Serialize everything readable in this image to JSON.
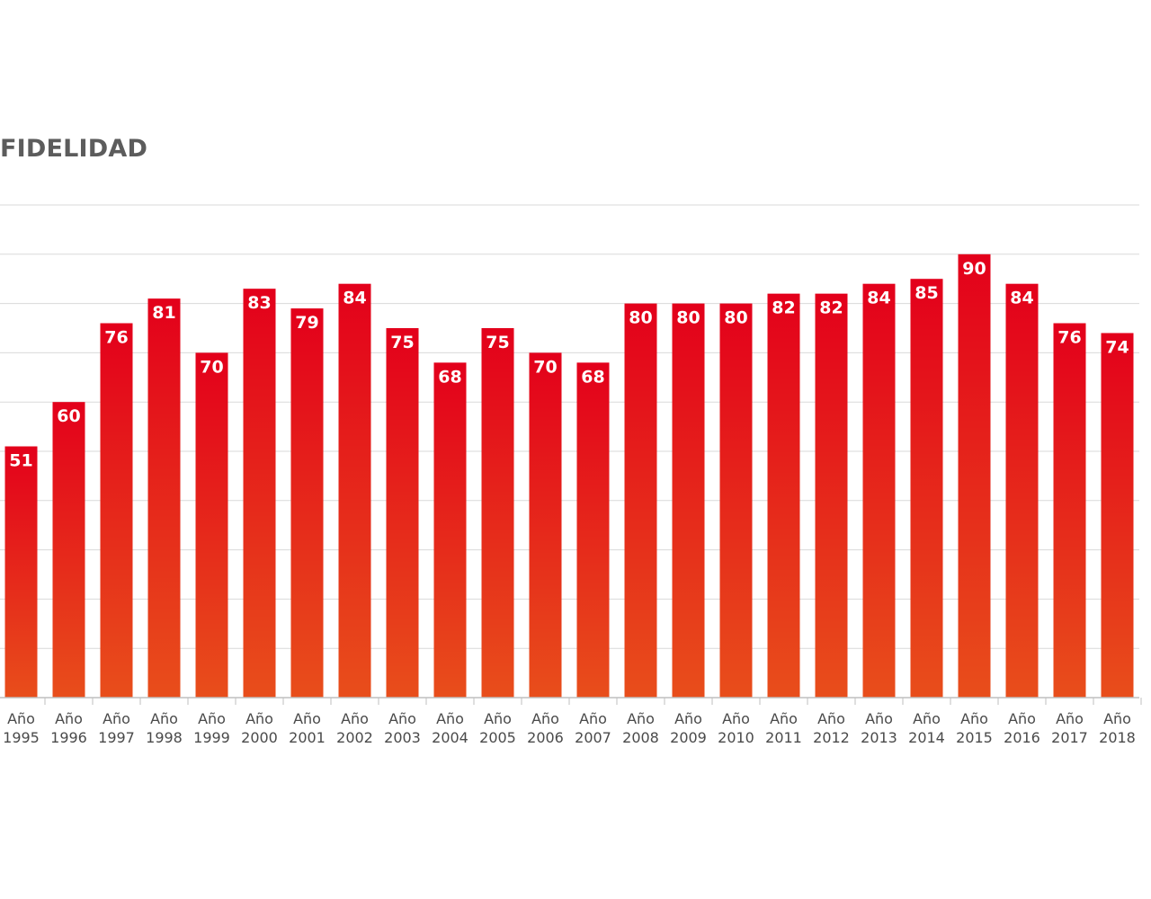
{
  "chart_data": {
    "type": "bar",
    "title": "FIDELIDAD",
    "xlabel": "",
    "ylabel": "",
    "ylim": [
      0,
      100
    ],
    "grid": true,
    "categories": [
      [
        "Año",
        "1995"
      ],
      [
        "Año",
        "1996"
      ],
      [
        "Año",
        "1997"
      ],
      [
        "Año",
        "1998"
      ],
      [
        "Año",
        "1999"
      ],
      [
        "Año",
        "2000"
      ],
      [
        "Año",
        "2001"
      ],
      [
        "Año",
        "2002"
      ],
      [
        "Año",
        "2003"
      ],
      [
        "Año",
        "2004"
      ],
      [
        "Año",
        "2005"
      ],
      [
        "Año",
        "2006"
      ],
      [
        "Año",
        "2007"
      ],
      [
        "Año",
        "2008"
      ],
      [
        "Año",
        "2009"
      ],
      [
        "Año",
        "2010"
      ],
      [
        "Año",
        "2011"
      ],
      [
        "Año",
        "2012"
      ],
      [
        "Año",
        "2013"
      ],
      [
        "Año",
        "2014"
      ],
      [
        "Año",
        "2015"
      ],
      [
        "Año",
        "2016"
      ],
      [
        "Año",
        "2017"
      ],
      [
        "Año",
        "2018"
      ]
    ],
    "values": [
      51,
      60,
      76,
      81,
      70,
      83,
      79,
      84,
      75,
      68,
      75,
      70,
      68,
      80,
      80,
      80,
      82,
      82,
      84,
      85,
      90,
      84,
      76,
      74
    ],
    "colors": {
      "bar_top": "#e3001b",
      "bar_bottom": "#e84e1b",
      "label": "#ffffff",
      "grid": "#d9d9d9",
      "axis": "#bfbfbf",
      "tick_text": "#4a4a4a",
      "title": "#5c5c5c"
    }
  }
}
